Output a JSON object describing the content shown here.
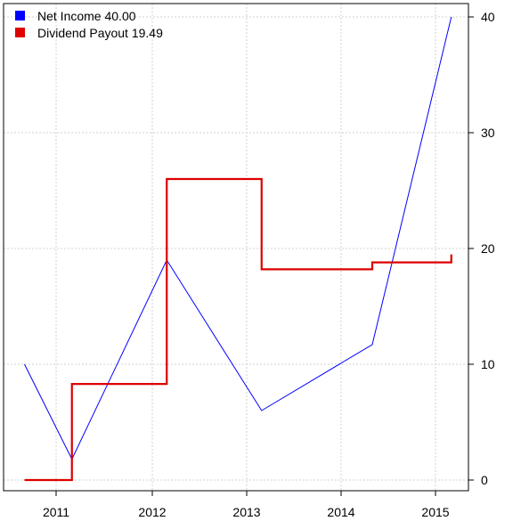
{
  "chart_data": {
    "type": "line",
    "x_ticks": [
      "2011",
      "2012",
      "2013",
      "2014",
      "2015"
    ],
    "y_ticks": [
      0,
      10,
      20,
      30,
      40
    ],
    "ylim": [
      0,
      40
    ],
    "y_axis_position": "right",
    "grid": true,
    "legend_placement": "top-left",
    "series": [
      {
        "name": "Net Income",
        "legend_label": "Net Income 40.00",
        "color": "#0000ff",
        "style": "line",
        "points": [
          {
            "x": "2010-09",
            "y": 10.0
          },
          {
            "x": "2011-03",
            "y": 1.8
          },
          {
            "x": "2012-03",
            "y": 19.0
          },
          {
            "x": "2013-03",
            "y": 6.0
          },
          {
            "x": "2014-05",
            "y": 11.7
          },
          {
            "x": "2015-03",
            "y": 40.0
          }
        ]
      },
      {
        "name": "Dividend Payout",
        "legend_label": "Dividend Payout 19.49",
        "color": "#dd0000",
        "style": "step",
        "points": [
          {
            "x": "2010-09",
            "y": 0.0
          },
          {
            "x": "2011-03",
            "y": 8.3
          },
          {
            "x": "2012-03",
            "y": 26.0
          },
          {
            "x": "2013-03",
            "y": 18.2
          },
          {
            "x": "2014-05",
            "y": 18.8
          },
          {
            "x": "2015-03",
            "y": 19.49
          }
        ]
      }
    ]
  }
}
